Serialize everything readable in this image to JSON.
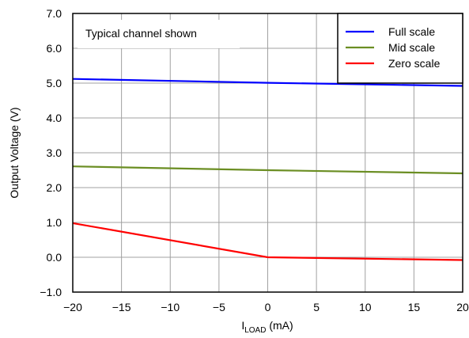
{
  "chart_data": {
    "type": "line",
    "annotation": "Typical channel shown",
    "xlabel_main": "I",
    "xlabel_sub": "LOAD",
    "xlabel_unit": " (mA)",
    "ylabel": "Output Voltage (V)",
    "xlim": [
      -20,
      20
    ],
    "ylim": [
      -1.0,
      7.0
    ],
    "x_ticks": [
      -20,
      -15,
      -10,
      -5,
      0,
      5,
      10,
      15,
      20
    ],
    "x_tick_labels": [
      "−20",
      "−15",
      "−10",
      "−5",
      "0",
      "5",
      "10",
      "15",
      "20"
    ],
    "y_ticks": [
      -1.0,
      0.0,
      1.0,
      2.0,
      3.0,
      4.0,
      5.0,
      6.0,
      7.0
    ],
    "y_tick_labels": [
      "−1.0",
      "0.0",
      "1.0",
      "2.0",
      "3.0",
      "4.0",
      "5.0",
      "6.0",
      "7.0"
    ],
    "grid": true,
    "legend_position": "top-right",
    "series": [
      {
        "name": "Full scale",
        "color": "#0000ff",
        "x": [
          -20,
          0,
          20
        ],
        "y": [
          5.12,
          5.01,
          4.92
        ]
      },
      {
        "name": "Mid scale",
        "color": "#6b8e23",
        "x": [
          -20,
          0,
          20
        ],
        "y": [
          2.61,
          2.5,
          2.41
        ]
      },
      {
        "name": "Zero scale",
        "color": "#ff0000",
        "x": [
          -20,
          0,
          20
        ],
        "y": [
          0.98,
          0.0,
          -0.08
        ]
      }
    ]
  }
}
